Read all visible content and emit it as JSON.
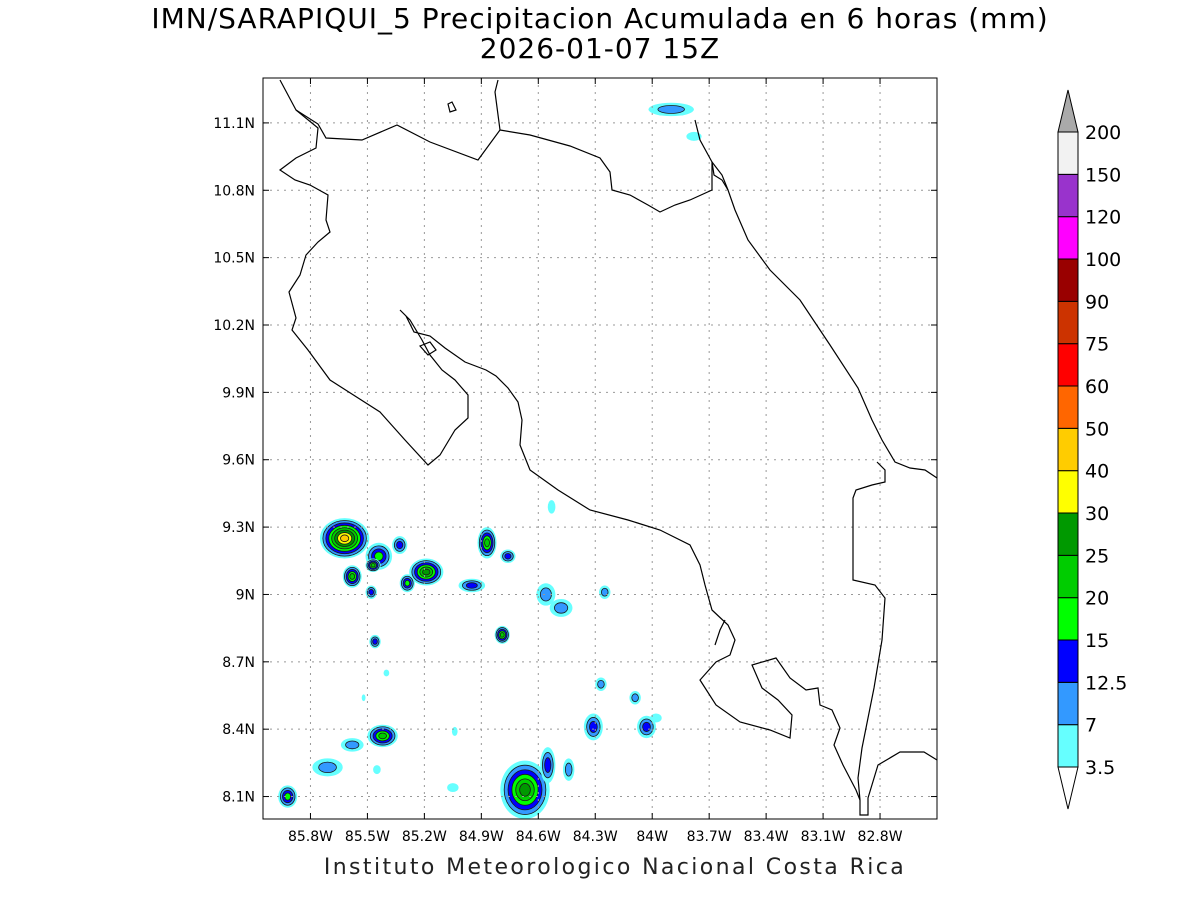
{
  "title": {
    "line1": "IMN/SARAPIQUI_5 Precipitacion Acumulada en 6 horas (mm)",
    "line2": "2026-01-07 15Z"
  },
  "footer": "Instituto Meteorologico Nacional Costa Rica",
  "map": {
    "lon_range": [
      -86.05,
      -82.5
    ],
    "lat_range": [
      8.0,
      11.3
    ],
    "lat_ticks": [
      {
        "value": 11.1,
        "label": "11.1N"
      },
      {
        "value": 10.8,
        "label": "10.8N"
      },
      {
        "value": 10.5,
        "label": "10.5N"
      },
      {
        "value": 10.2,
        "label": "10.2N"
      },
      {
        "value": 9.9,
        "label": "9.9N"
      },
      {
        "value": 9.6,
        "label": "9.6N"
      },
      {
        "value": 9.3,
        "label": "9.3N"
      },
      {
        "value": 9.0,
        "label": "9N"
      },
      {
        "value": 8.7,
        "label": "8.7N"
      },
      {
        "value": 8.4,
        "label": "8.4N"
      },
      {
        "value": 8.1,
        "label": "8.1N"
      }
    ],
    "lon_ticks": [
      {
        "value": -85.8,
        "label": "85.8W"
      },
      {
        "value": -85.5,
        "label": "85.5W"
      },
      {
        "value": -85.2,
        "label": "85.2W"
      },
      {
        "value": -84.9,
        "label": "84.9W"
      },
      {
        "value": -84.6,
        "label": "84.6W"
      },
      {
        "value": -84.3,
        "label": "84.3W"
      },
      {
        "value": -84.0,
        "label": "84W"
      },
      {
        "value": -83.7,
        "label": "83.7W"
      },
      {
        "value": -83.4,
        "label": "83.4W"
      },
      {
        "value": -83.1,
        "label": "83.1W"
      },
      {
        "value": -82.8,
        "label": "82.8W"
      }
    ],
    "grid": "dotted"
  },
  "colorbar": {
    "levels": [
      "3.5",
      "7",
      "12.5",
      "15",
      "20",
      "25",
      "30",
      "40",
      "50",
      "60",
      "75",
      "90",
      "100",
      "120",
      "150",
      "200"
    ],
    "colors": [
      "#66ffff",
      "#3399ff",
      "#0000ff",
      "#00ff00",
      "#00cc00",
      "#009900",
      "#ffff00",
      "#ffcc00",
      "#ff6600",
      "#ff0000",
      "#cc3300",
      "#990000",
      "#ff00ff",
      "#9933cc",
      "#f2f2f2",
      "#aaaaaa"
    ]
  },
  "precip_cells": [
    {
      "lon": -85.62,
      "lat": 9.25,
      "rx": 0.13,
      "ry": 0.09,
      "level": 7
    },
    {
      "lon": -85.44,
      "lat": 9.17,
      "rx": 0.07,
      "ry": 0.06,
      "level": 3
    },
    {
      "lon": -85.58,
      "lat": 9.08,
      "rx": 0.05,
      "ry": 0.05,
      "level": 4
    },
    {
      "lon": -85.47,
      "lat": 9.13,
      "rx": 0.04,
      "ry": 0.03,
      "level": 4
    },
    {
      "lon": -85.19,
      "lat": 9.1,
      "rx": 0.09,
      "ry": 0.06,
      "level": 5
    },
    {
      "lon": -85.29,
      "lat": 9.05,
      "rx": 0.04,
      "ry": 0.04,
      "level": 3
    },
    {
      "lon": -85.33,
      "lat": 9.22,
      "rx": 0.04,
      "ry": 0.04,
      "level": 2
    },
    {
      "lon": -85.48,
      "lat": 9.01,
      "rx": 0.03,
      "ry": 0.03,
      "level": 2
    },
    {
      "lon": -84.95,
      "lat": 9.04,
      "rx": 0.07,
      "ry": 0.03,
      "level": 2
    },
    {
      "lon": -84.87,
      "lat": 9.23,
      "rx": 0.05,
      "ry": 0.07,
      "level": 4
    },
    {
      "lon": -84.76,
      "lat": 9.17,
      "rx": 0.04,
      "ry": 0.03,
      "level": 2
    },
    {
      "lon": -84.56,
      "lat": 9.0,
      "rx": 0.05,
      "ry": 0.05,
      "level": 1
    },
    {
      "lon": -84.48,
      "lat": 8.94,
      "rx": 0.06,
      "ry": 0.04,
      "level": 1
    },
    {
      "lon": -84.25,
      "lat": 9.01,
      "rx": 0.03,
      "ry": 0.03,
      "level": 1
    },
    {
      "lon": -84.53,
      "lat": 9.39,
      "rx": 0.02,
      "ry": 0.03,
      "level": 0
    },
    {
      "lon": -84.79,
      "lat": 8.82,
      "rx": 0.04,
      "ry": 0.04,
      "level": 4
    },
    {
      "lon": -85.46,
      "lat": 8.79,
      "rx": 0.03,
      "ry": 0.03,
      "level": 2
    },
    {
      "lon": -85.42,
      "lat": 8.37,
      "rx": 0.08,
      "ry": 0.05,
      "level": 4
    },
    {
      "lon": -85.58,
      "lat": 8.33,
      "rx": 0.06,
      "ry": 0.03,
      "level": 1
    },
    {
      "lon": -85.71,
      "lat": 8.23,
      "rx": 0.08,
      "ry": 0.04,
      "level": 1
    },
    {
      "lon": -85.92,
      "lat": 8.1,
      "rx": 0.05,
      "ry": 0.05,
      "level": 3
    },
    {
      "lon": -85.45,
      "lat": 8.22,
      "rx": 0.02,
      "ry": 0.02,
      "level": 0
    },
    {
      "lon": -85.05,
      "lat": 8.14,
      "rx": 0.03,
      "ry": 0.02,
      "level": 0
    },
    {
      "lon": -84.67,
      "lat": 8.13,
      "rx": 0.13,
      "ry": 0.13,
      "level": 5
    },
    {
      "lon": -84.55,
      "lat": 8.24,
      "rx": 0.04,
      "ry": 0.08,
      "level": 2
    },
    {
      "lon": -84.44,
      "lat": 8.22,
      "rx": 0.03,
      "ry": 0.05,
      "level": 1
    },
    {
      "lon": -84.31,
      "lat": 8.41,
      "rx": 0.05,
      "ry": 0.06,
      "level": 2
    },
    {
      "lon": -84.27,
      "lat": 8.6,
      "rx": 0.03,
      "ry": 0.03,
      "level": 1
    },
    {
      "lon": -84.09,
      "lat": 8.54,
      "rx": 0.03,
      "ry": 0.03,
      "level": 1
    },
    {
      "lon": -84.03,
      "lat": 8.41,
      "rx": 0.05,
      "ry": 0.05,
      "level": 2
    },
    {
      "lon": -83.98,
      "lat": 8.45,
      "rx": 0.03,
      "ry": 0.02,
      "level": 0
    },
    {
      "lon": -83.9,
      "lat": 11.16,
      "rx": 0.12,
      "ry": 0.03,
      "level": 1
    },
    {
      "lon": -83.78,
      "lat": 11.04,
      "rx": 0.04,
      "ry": 0.02,
      "level": 0
    },
    {
      "lon": -85.04,
      "lat": 8.39,
      "rx": 0.015,
      "ry": 0.02,
      "level": 0
    },
    {
      "lon": -85.4,
      "lat": 8.65,
      "rx": 0.015,
      "ry": 0.015,
      "level": 0
    },
    {
      "lon": -85.52,
      "lat": 8.54,
      "rx": 0.01,
      "ry": 0.015,
      "level": 0
    }
  ]
}
